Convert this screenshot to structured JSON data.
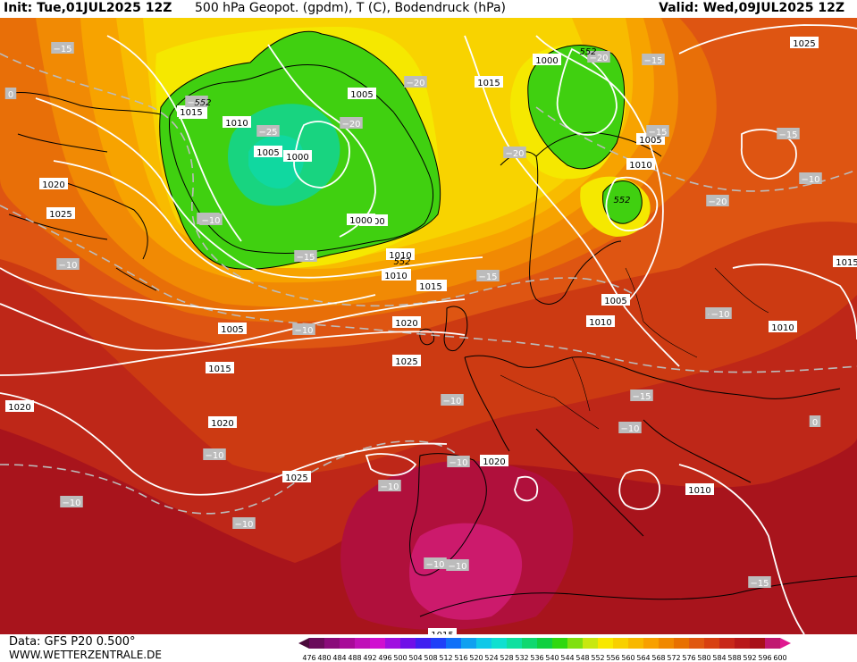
{
  "header": {
    "init": "Init: Tue,01JUL2025 12Z",
    "title": "500  hPa  Geopot. (gpdm), T (C), Bodendruck (hPa)",
    "valid": "Valid: Wed,09JUL2025 12Z"
  },
  "footer": {
    "source": "Data: GFS P20 0.500°",
    "site": "WWW.WETTERZENTRALE.DE"
  },
  "colorbar": {
    "values": [
      "476",
      "480",
      "484",
      "488",
      "492",
      "496",
      "500",
      "504",
      "508",
      "512",
      "516",
      "520",
      "524",
      "528",
      "532",
      "536",
      "540",
      "544",
      "548",
      "552",
      "556",
      "560",
      "564",
      "568",
      "572",
      "576",
      "580",
      "584",
      "588",
      "592",
      "596",
      "600"
    ],
    "colors": [
      "#4a0a3a",
      "#6a0a5a",
      "#8a0a7a",
      "#a80a98",
      "#c010b8",
      "#d010d0",
      "#a010e0",
      "#7010e8",
      "#4020f0",
      "#2040f8",
      "#1070f8",
      "#10a0f0",
      "#10c8e8",
      "#10e0d0",
      "#10e0a0",
      "#10d870",
      "#10d040",
      "#30d810",
      "#80e010",
      "#c8e810",
      "#f8e800",
      "#f8d000",
      "#f8b800",
      "#f8a000",
      "#f08800",
      "#e87000",
      "#e05810",
      "#d84010",
      "#c82818",
      "#b81818",
      "#a81018",
      "#c01870",
      "#e01890"
    ]
  },
  "pressure_labels": [
    "1000",
    "1005",
    "1010",
    "1015",
    "1020",
    "1025",
    "1010",
    "1015",
    "1005",
    "1010",
    "1000",
    "1005",
    "1010",
    "1015",
    "1020",
    "1015",
    "1020",
    "1025",
    "1020",
    "1025",
    "1015",
    "1010",
    "1005",
    "1010",
    "1015",
    "1020",
    "1025",
    "1010",
    "1015",
    "1010",
    "1000",
    "1015",
    "1005",
    "1000",
    "1010"
  ],
  "temp_labels": [
    "-15",
    "-20",
    "-25",
    "-20",
    "-20",
    "-25",
    "-20",
    "-15",
    "-20",
    "-10",
    "-15",
    "-10",
    "-10",
    "-10",
    "-10",
    "-10",
    "-15",
    "-10",
    "-10",
    "-10",
    "-10",
    "-10",
    "-10",
    "-15",
    "-15",
    "-10",
    "-10",
    "0",
    "0",
    "-10",
    "-15",
    "-20",
    "-15"
  ],
  "geopot_labels": [
    "552",
    "552",
    "552",
    "552"
  ]
}
